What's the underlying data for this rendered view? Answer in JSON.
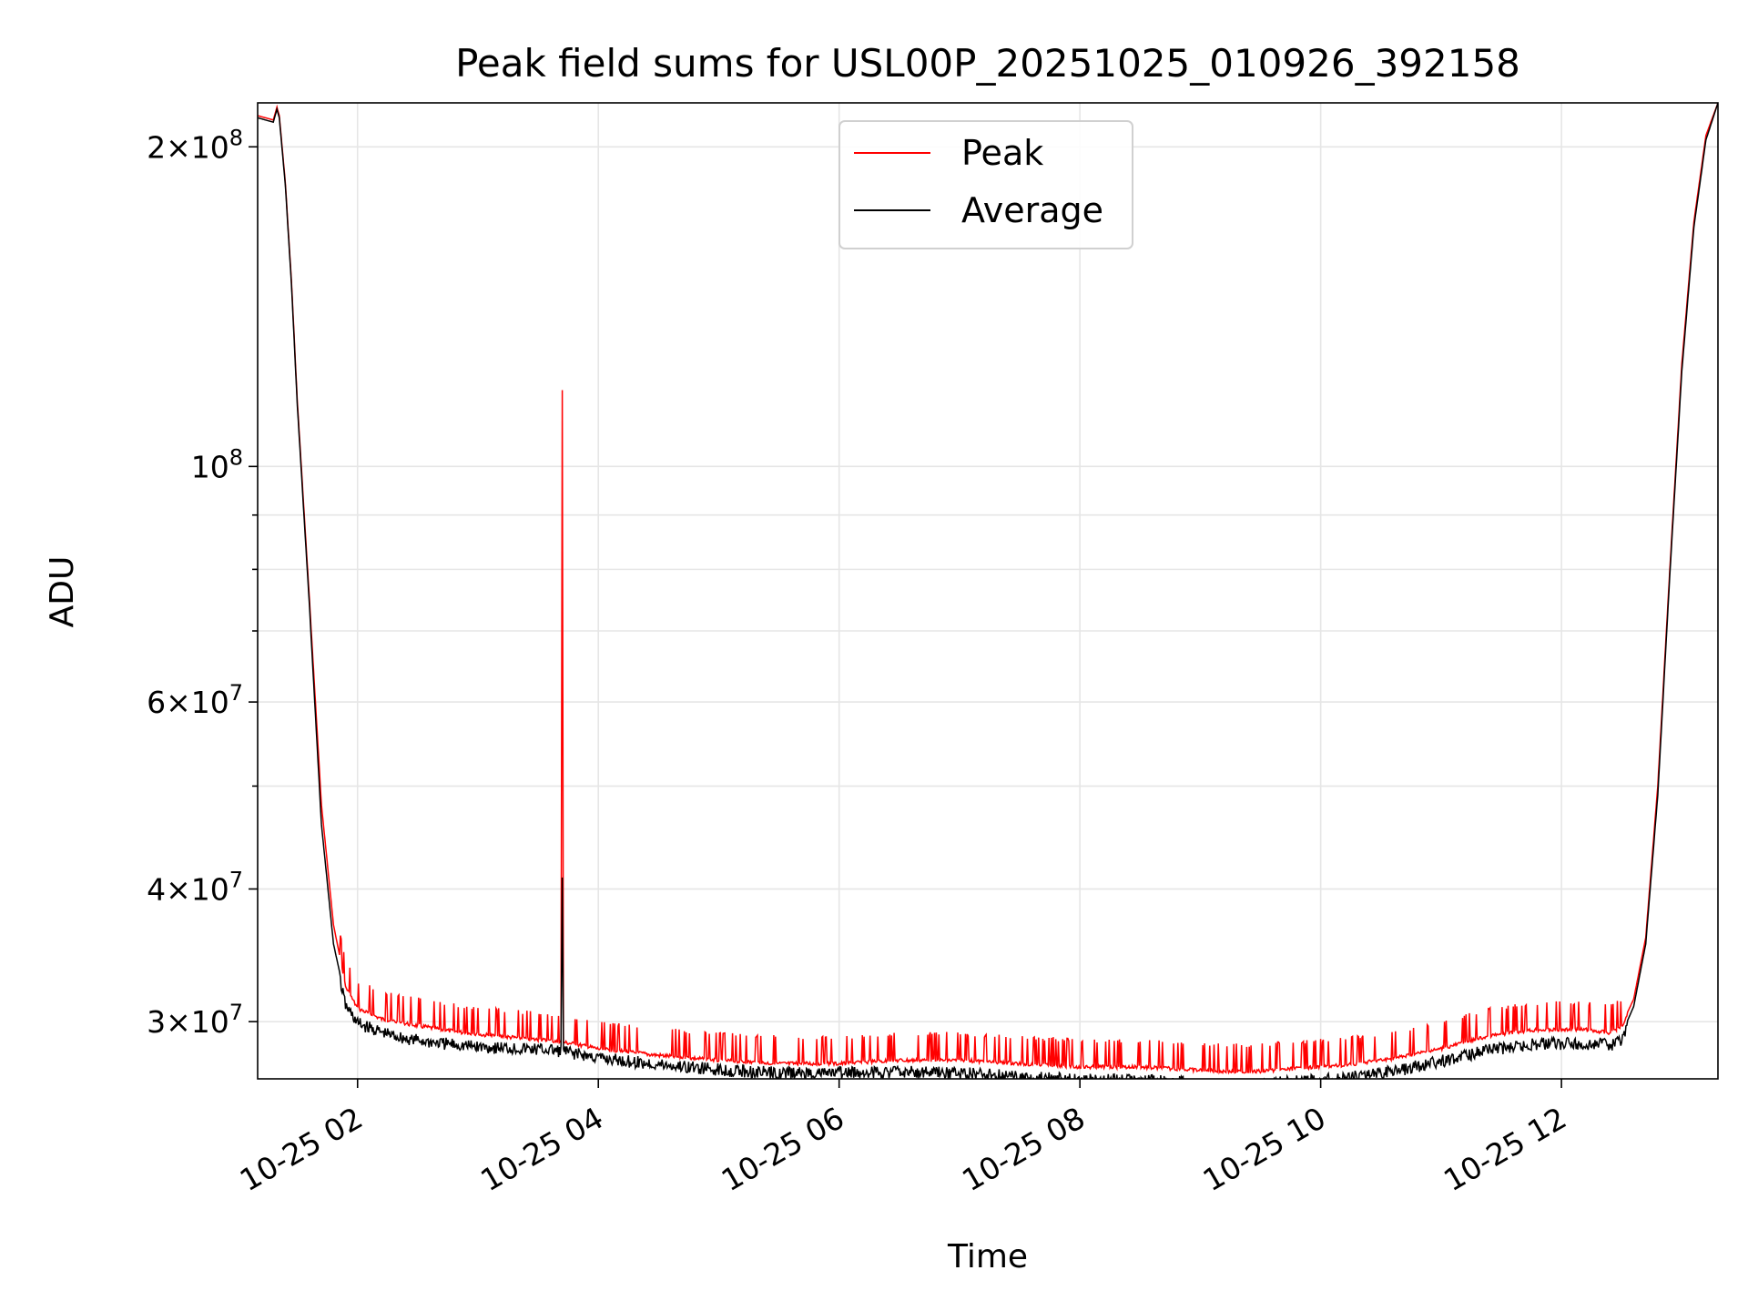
{
  "chart_data": {
    "type": "line",
    "title": "Peak field sums for USL00P_20251025_010926_392158",
    "xlabel": "Time",
    "ylabel": "ADU",
    "yscale": "log",
    "xlim_hours": [
      1.17,
      13.3
    ],
    "ylim": [
      26500000,
      220000000
    ],
    "grid": true,
    "legend_position": "upper-center",
    "x_ticks": [
      {
        "value": 2,
        "label": "10-25 02"
      },
      {
        "value": 4,
        "label": "10-25 04"
      },
      {
        "value": 6,
        "label": "10-25 06"
      },
      {
        "value": 8,
        "label": "10-25 08"
      },
      {
        "value": 10,
        "label": "10-25 10"
      },
      {
        "value": 12,
        "label": "10-25 12"
      }
    ],
    "y_major_ticks": [
      {
        "value": 30000000,
        "mantissa": "3",
        "exponent": "7"
      },
      {
        "value": 40000000,
        "mantissa": "4",
        "exponent": "7"
      },
      {
        "value": 60000000,
        "mantissa": "6",
        "exponent": "7"
      },
      {
        "value": 100000000,
        "mantissa": "",
        "exponent": "8"
      },
      {
        "value": 200000000,
        "mantissa": "2",
        "exponent": "8"
      }
    ],
    "y_minor_ticks": [
      50000000,
      70000000,
      80000000,
      90000000
    ],
    "series": [
      {
        "name": "Peak",
        "color": "#ff0000",
        "x_hours": [
          1.17,
          1.3,
          1.33,
          1.35,
          1.4,
          1.45,
          1.5,
          1.6,
          1.7,
          1.8,
          1.9,
          2.0,
          2.2,
          2.4,
          2.7,
          3.0,
          3.3,
          3.6,
          3.69,
          3.7,
          3.71,
          3.8,
          4.0,
          4.5,
          5.0,
          5.5,
          6.0,
          6.5,
          7.0,
          7.5,
          8.0,
          8.5,
          9.0,
          9.4,
          9.8,
          10.2,
          10.6,
          11.0,
          11.4,
          11.8,
          12.2,
          12.4,
          12.5,
          12.6,
          12.7,
          12.8,
          12.9,
          13.0,
          13.1,
          13.2,
          13.3
        ],
        "values": [
          214000000,
          212000000,
          218000000,
          214000000,
          185000000,
          150000000,
          115000000,
          75000000,
          48000000,
          37000000,
          32500000,
          31000000,
          30300000,
          30000000,
          29600000,
          29300000,
          29100000,
          28900000,
          28800000,
          118000000,
          28800000,
          28700000,
          28400000,
          28000000,
          27700000,
          27500000,
          27500000,
          27700000,
          27700000,
          27500000,
          27300000,
          27300000,
          27100000,
          27000000,
          27200000,
          27400000,
          27800000,
          28400000,
          29200000,
          29600000,
          29600000,
          29400000,
          29800000,
          31500000,
          36000000,
          50000000,
          80000000,
          125000000,
          170000000,
          205000000,
          220000000
        ]
      },
      {
        "name": "Average",
        "color": "#000000",
        "x_hours": [
          1.17,
          1.3,
          1.33,
          1.35,
          1.4,
          1.45,
          1.5,
          1.6,
          1.7,
          1.8,
          1.9,
          2.0,
          2.2,
          2.4,
          2.7,
          3.0,
          3.3,
          3.6,
          3.69,
          3.7,
          3.71,
          3.8,
          4.0,
          4.5,
          5.0,
          5.5,
          6.0,
          6.5,
          7.0,
          7.5,
          8.0,
          8.5,
          9.0,
          9.4,
          9.8,
          10.2,
          10.6,
          11.0,
          11.4,
          11.8,
          12.2,
          12.4,
          12.5,
          12.6,
          12.7,
          12.8,
          12.9,
          13.0,
          13.1,
          13.2,
          13.3
        ],
        "values": [
          213000000,
          211000000,
          217000000,
          213000000,
          184000000,
          149000000,
          114000000,
          74000000,
          46000000,
          35500000,
          31500000,
          30300000,
          29700000,
          29300000,
          29000000,
          28800000,
          28700000,
          28600000,
          28500000,
          41000000,
          28500000,
          28400000,
          28100000,
          27700000,
          27400000,
          27200000,
          27200000,
          27300000,
          27200000,
          27000000,
          26800000,
          26800000,
          26600000,
          26500000,
          26700000,
          26900000,
          27300000,
          27900000,
          28600000,
          29000000,
          29000000,
          28900000,
          29200000,
          31000000,
          35500000,
          49000000,
          79000000,
          123000000,
          168000000,
          203000000,
          220000000
        ]
      }
    ]
  }
}
